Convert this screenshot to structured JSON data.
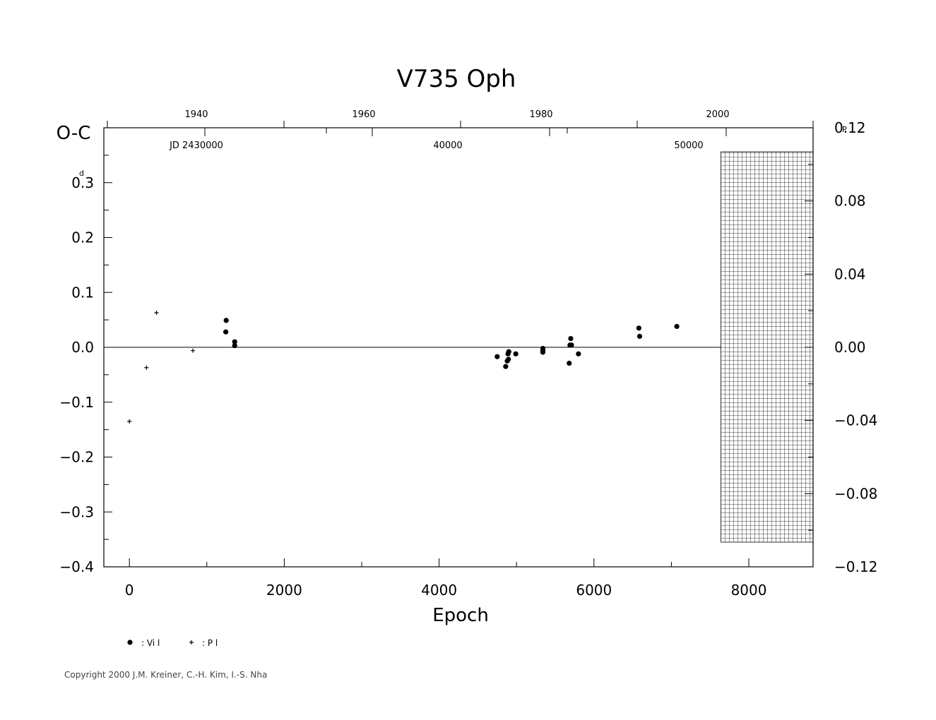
{
  "copyright": "Copyright 2000 J.M. Kreiner, C.-H. Kim, I.-S. Nha",
  "chart_data": {
    "type": "scatter",
    "title": "V735 Oph",
    "xlabel": "Epoch",
    "ylabel": "O-C",
    "y_unit_mark": "d",
    "y2_unit_mark": "P",
    "xlim": [
      -330,
      8830
    ],
    "ylim": [
      -0.4,
      0.4
    ],
    "x_ticks": [
      "0",
      "2000",
      "4000",
      "6000",
      "8000"
    ],
    "y_ticks": [
      "0.3",
      "0.2",
      "0.1",
      "0.0",
      "−0.1",
      "−0.2",
      "−0.3",
      "−0.4"
    ],
    "y2_ticks": [
      "0.12",
      "0.08",
      "0.04",
      "0.00",
      "−0.04",
      "−0.08",
      "−0.12"
    ],
    "top_year_ticks": [
      "1940",
      "1960",
      "1980",
      "2000"
    ],
    "jd_label": "JD 2430000",
    "jd_ticks": [
      "40000",
      "50000"
    ],
    "grid": false,
    "hatched_region_x": [
      7640,
      8830
    ],
    "legend_position": "bottom-left",
    "legend": [
      {
        "symbol": "dot",
        "label": ": Vi l"
      },
      {
        "symbol": "plus",
        "label": ": P l"
      }
    ],
    "series": [
      {
        "name": "Vi l",
        "marker": "dot",
        "points": [
          [
            1250,
            0.049
          ],
          [
            1245,
            0.028
          ],
          [
            1360,
            0.01
          ],
          [
            1360,
            0.003
          ],
          [
            4750,
            -0.017
          ],
          [
            4860,
            -0.035
          ],
          [
            4880,
            -0.025
          ],
          [
            4890,
            -0.012
          ],
          [
            4900,
            -0.008
          ],
          [
            4895,
            -0.022
          ],
          [
            4990,
            -0.012
          ],
          [
            5340,
            -0.002
          ],
          [
            5340,
            -0.006
          ],
          [
            5340,
            -0.009
          ],
          [
            5680,
            -0.029
          ],
          [
            5700,
            0.016
          ],
          [
            5690,
            0.004
          ],
          [
            5710,
            0.004
          ],
          [
            5800,
            -0.012
          ],
          [
            6580,
            0.035
          ],
          [
            6590,
            0.02
          ],
          [
            7070,
            0.038
          ]
        ]
      },
      {
        "name": "P l",
        "marker": "plus",
        "points": [
          [
            0,
            -0.135
          ],
          [
            220,
            -0.037
          ],
          [
            350,
            0.063
          ],
          [
            820,
            -0.006
          ]
        ]
      }
    ]
  }
}
